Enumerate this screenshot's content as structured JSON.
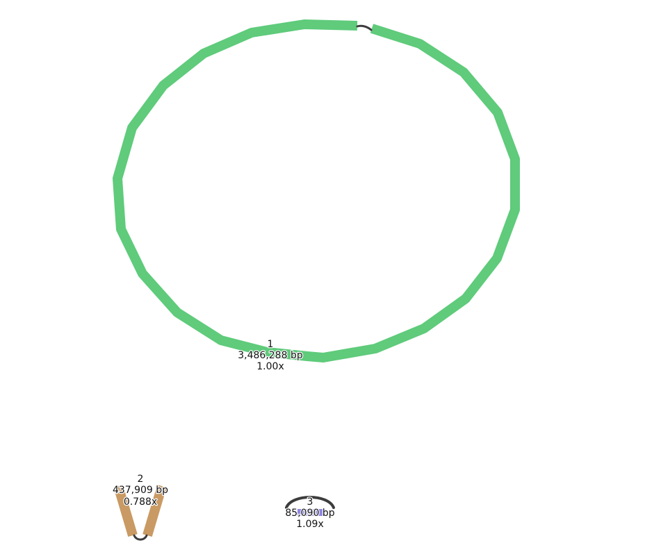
{
  "graph": {
    "colors": {
      "node1": "#5fcb7b",
      "node2": "#c99a63",
      "node3": "#8f86e6",
      "edge": "#3c3c3c"
    },
    "nodes": [
      {
        "id": "1",
        "length": "3,486,288 bp",
        "depth": "1.00x"
      },
      {
        "id": "2",
        "length": "437,909 bp",
        "depth": "0.788x"
      },
      {
        "id": "3",
        "length": "85,090 bp",
        "depth": "1.09x"
      }
    ]
  }
}
